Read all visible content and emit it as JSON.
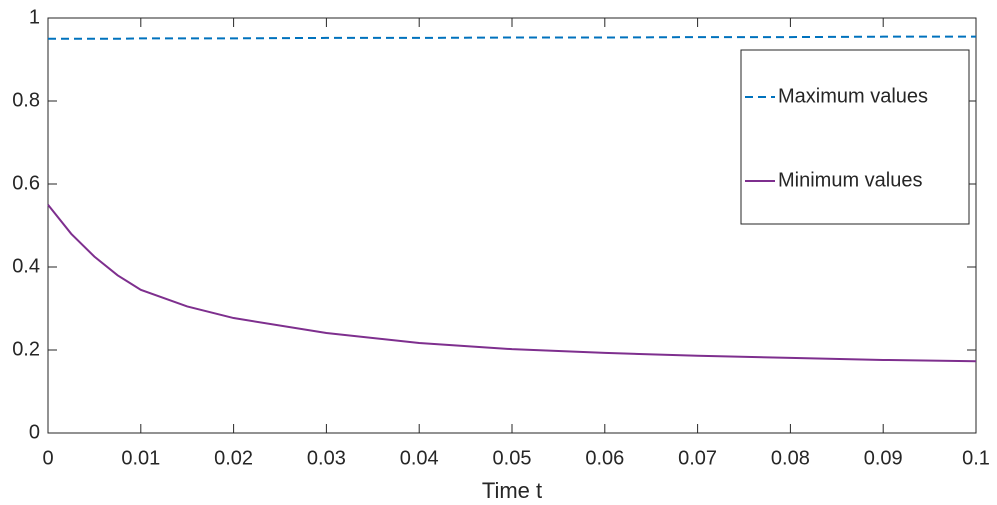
{
  "chart_data": {
    "type": "line",
    "xlabel": "Time t",
    "x": [
      0,
      0.0025,
      0.005,
      0.0075,
      0.01,
      0.015,
      0.02,
      0.03,
      0.04,
      0.05,
      0.06,
      0.07,
      0.08,
      0.09,
      0.1
    ],
    "series": [
      {
        "name": "Maximum values",
        "color": "#0072bd",
        "dash": true,
        "values": [
          0.95,
          0.95,
          0.95,
          0.95,
          0.951,
          0.951,
          0.951,
          0.952,
          0.952,
          0.953,
          0.953,
          0.954,
          0.954,
          0.955,
          0.955
        ]
      },
      {
        "name": "Minimum values",
        "color": "#7e2f8e",
        "dash": false,
        "values": [
          0.55,
          0.48,
          0.425,
          0.38,
          0.345,
          0.305,
          0.277,
          0.241,
          0.217,
          0.202,
          0.193,
          0.186,
          0.181,
          0.176,
          0.173
        ]
      }
    ],
    "xlim": [
      0,
      0.1
    ],
    "xticks": [
      0,
      0.01,
      0.02,
      0.03,
      0.04,
      0.05,
      0.06,
      0.07,
      0.08,
      0.09,
      0.1
    ],
    "ylim": [
      0,
      1
    ],
    "yticks": [
      0,
      0.2,
      0.4,
      0.6,
      0.8,
      1
    ],
    "grid": false,
    "legend": "upper right"
  }
}
